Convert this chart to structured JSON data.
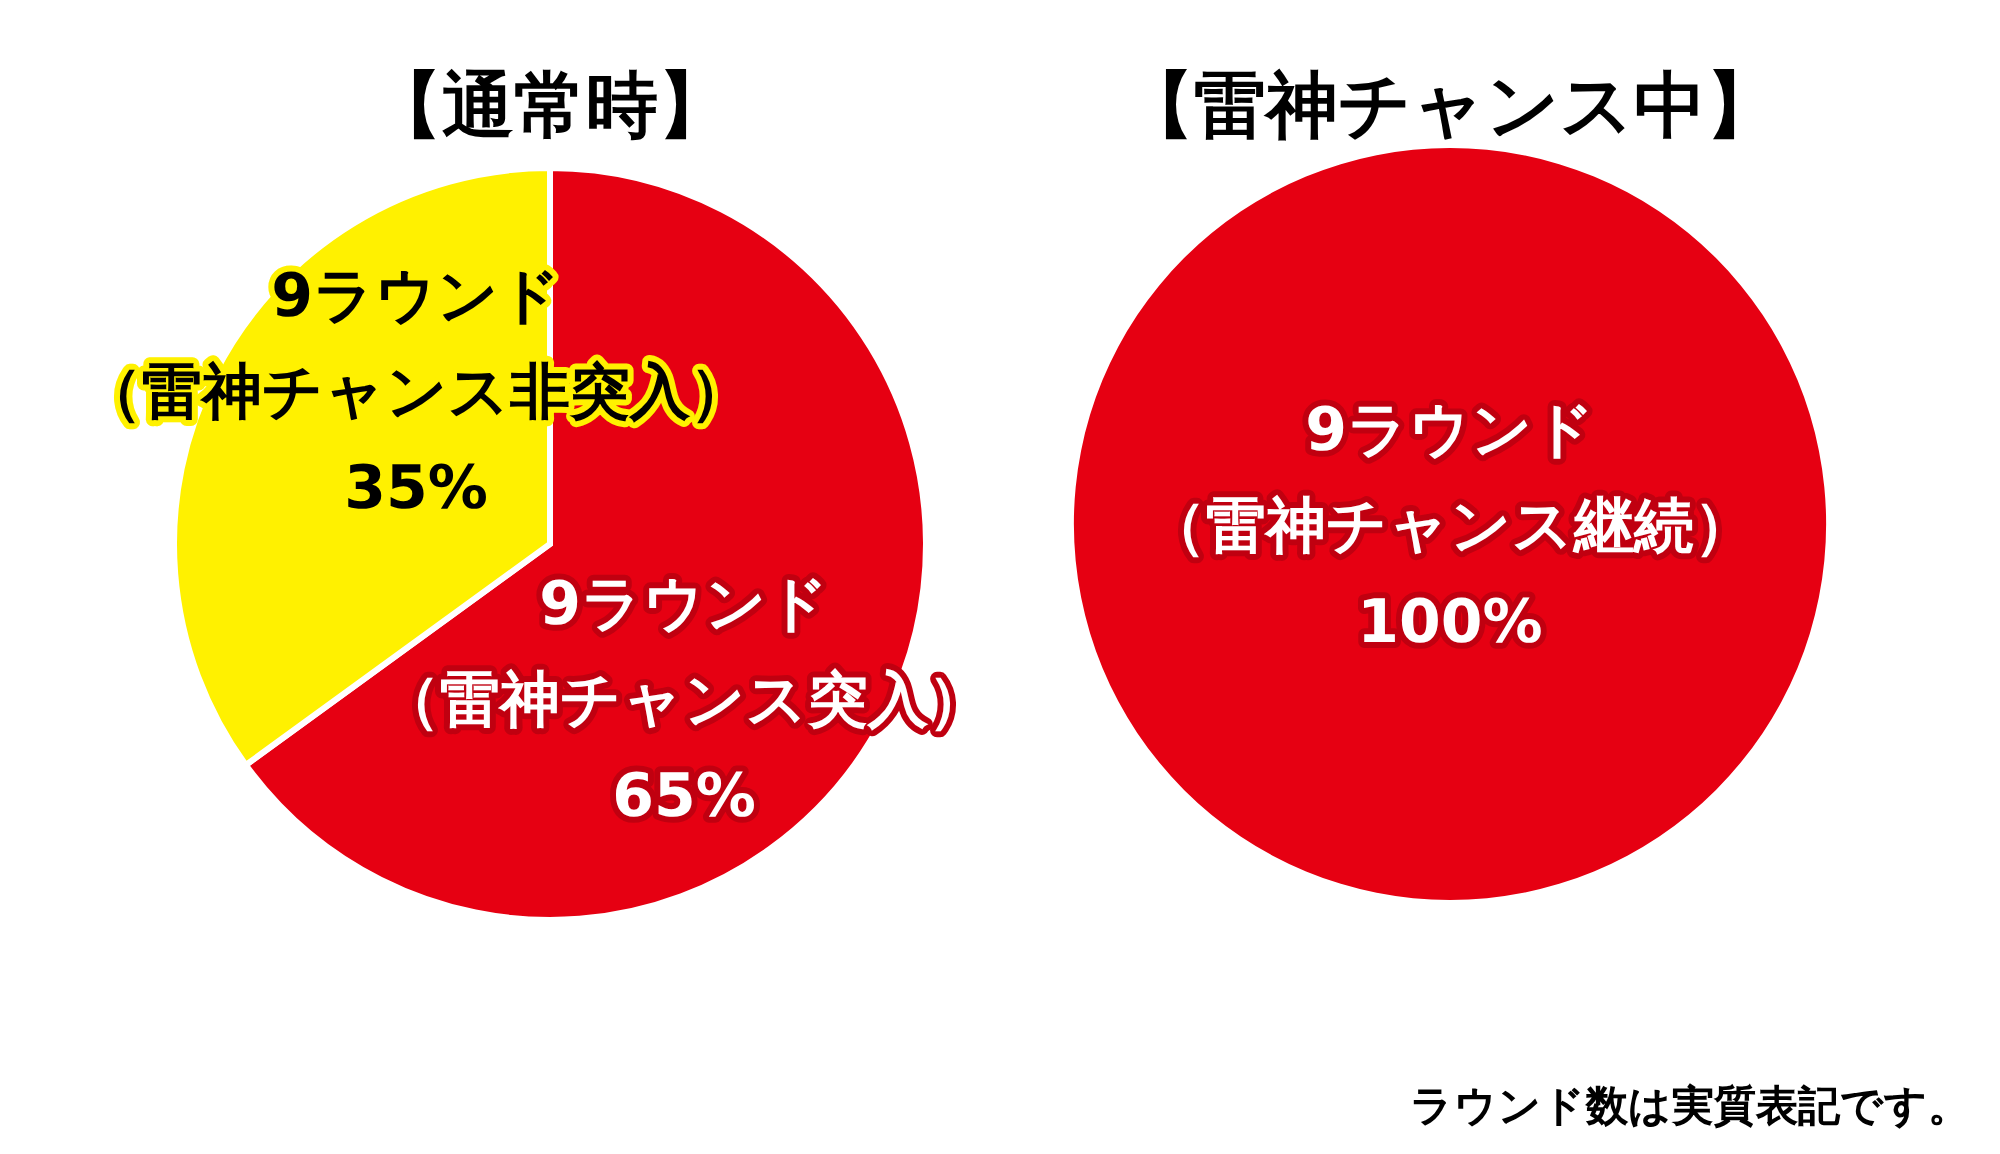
{
  "chart_data": [
    {
      "type": "pie",
      "title": "【通常時】",
      "categories": [
        "9ラウンド（雷神チャンス突入）",
        "9ラウンド（雷神チャンス非突入）"
      ],
      "values": [
        65,
        35
      ],
      "colors": [
        "#e60012",
        "#fff100"
      ],
      "value_labels": [
        "65%",
        "35%"
      ]
    },
    {
      "type": "pie",
      "title": "【雷神チャンス中】",
      "categories": [
        "9ラウンド（雷神チャンス継続）"
      ],
      "values": [
        100
      ],
      "colors": [
        "#e60012"
      ],
      "value_labels": [
        "100%"
      ],
      "annotations": [
        "ラウンド数は実質表記です。"
      ]
    }
  ]
}
